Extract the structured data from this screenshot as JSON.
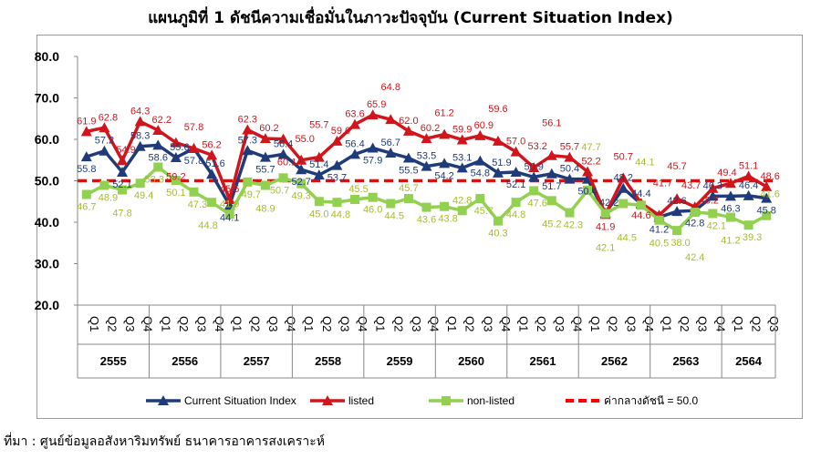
{
  "title": "แผนภูมิที่ 1 ดัชนีความเชื่อมั่นในภาวะปัจจุบัน (Current Situation Index)",
  "source": "ที่มา : ศูนย์ข้อมูลอสังหาริมทรัพย์ ธนาคารอาคารสงเคราะห์",
  "chart_data": {
    "type": "line",
    "title": "แผนภูมิที่ 1 ดัชนีความเชื่อมั่นในภาวะปัจจุบัน (Current Situation Index)",
    "xlabel": "",
    "ylabel": "",
    "ylim": [
      20,
      80
    ],
    "yticks": [
      "20.0",
      "30.0",
      "40.0",
      "50.0",
      "60.0",
      "70.0",
      "80.0"
    ],
    "grid": false,
    "legend_position": "bottom",
    "years": [
      "2555",
      "2556",
      "2557",
      "2558",
      "2559",
      "2560",
      "2561",
      "2562",
      "2563",
      "2564"
    ],
    "categories": [
      "Q1",
      "Q2",
      "Q3",
      "Q4",
      "Q1",
      "Q2",
      "Q3",
      "Q4",
      "Q1",
      "Q2",
      "Q3",
      "Q4",
      "Q1",
      "Q2",
      "Q3",
      "Q4",
      "Q1",
      "Q2",
      "Q3",
      "Q4",
      "Q1",
      "Q2",
      "Q3",
      "Q4",
      "Q1",
      "Q2",
      "Q3",
      "Q4",
      "Q1",
      "Q2",
      "Q3",
      "Q4",
      "Q1",
      "Q2",
      "Q3",
      "Q4",
      "Q1",
      "Q2",
      "Q3"
    ],
    "series": [
      {
        "name": "Current Situation Index",
        "color": "#1f3b7a",
        "marker": "triangle",
        "values": [
          55.8,
          57.2,
          52.1,
          58.3,
          58.6,
          55.6,
          57.8,
          51.6,
          44.1,
          57.3,
          55.7,
          56.4,
          52.7,
          51.4,
          53.7,
          56.4,
          57.9,
          56.7,
          55.5,
          53.5,
          54.2,
          53.1,
          54.8,
          51.9,
          52.1,
          50.9,
          51.7,
          50.4,
          50.4,
          42.2,
          48.2,
          44.4,
          41.2,
          42.6,
          42.8,
          46.3,
          46.3,
          46.4,
          45.8
        ]
      },
      {
        "name": "listed",
        "color": "#d0161c",
        "marker": "triangle",
        "values": [
          61.9,
          62.8,
          54.9,
          64.3,
          62.2,
          59.2,
          57.8,
          56.2,
          45.5,
          62.3,
          60.2,
          60.1,
          55.0,
          55.7,
          59.6,
          63.6,
          65.9,
          64.8,
          62.0,
          60.2,
          61.2,
          59.9,
          60.9,
          59.6,
          57.0,
          53.2,
          56.1,
          55.7,
          52.2,
          41.9,
          50.7,
          44.6,
          41.7,
          45.7,
          43.7,
          48.2,
          49.4,
          51.1,
          48.6
        ]
      },
      {
        "name": "non-listed",
        "color": "#92d050",
        "label_color": "#a8bc2c",
        "marker": "square",
        "values": [
          46.7,
          48.9,
          47.8,
          49.4,
          53.3,
          50.1,
          47.3,
          44.8,
          41.9,
          49.7,
          48.9,
          50.7,
          49.3,
          45.0,
          44.8,
          45.5,
          46.0,
          44.5,
          45.7,
          43.6,
          43.8,
          42.8,
          45.7,
          40.3,
          44.8,
          47.6,
          45.2,
          42.3,
          47.7,
          42.1,
          44.5,
          44.1,
          40.5,
          38.0,
          42.4,
          42.1,
          41.2,
          39.3,
          41.6
        ]
      }
    ],
    "reference_line": {
      "name": "ค่ากลางดัชนี = 50.0",
      "value": 50.0,
      "color": "#ff0000",
      "style": "dashed"
    }
  }
}
